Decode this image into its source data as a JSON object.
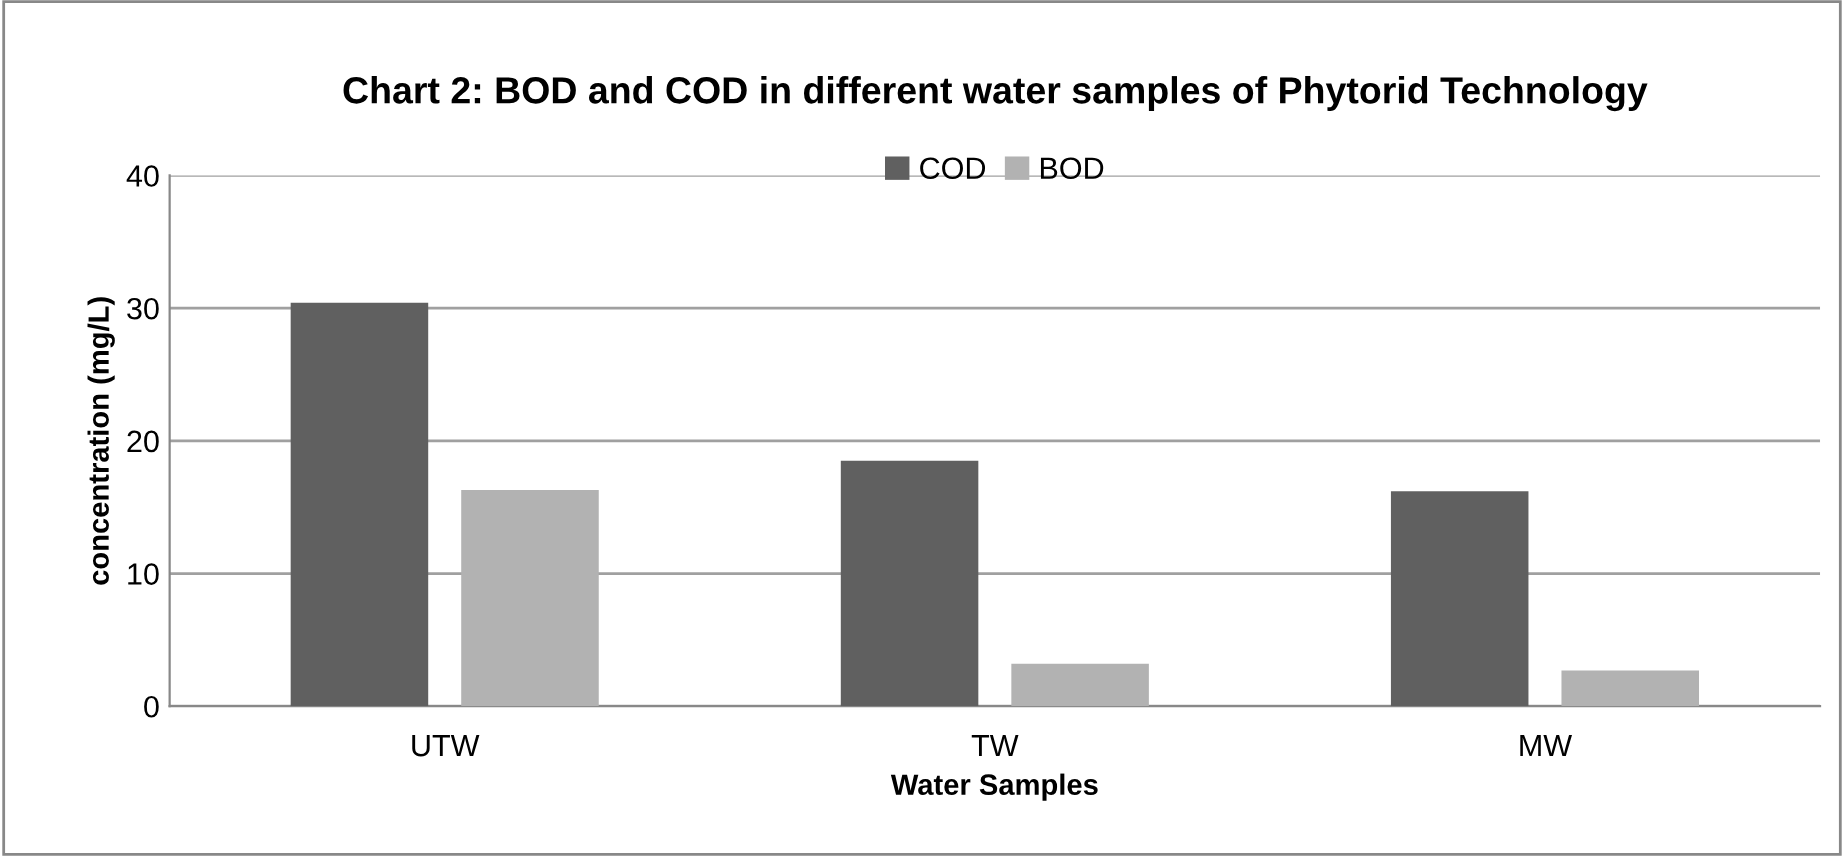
{
  "chart_data": {
    "type": "bar",
    "title": "Chart 2: BOD and COD in different water samples of Phytorid Technology",
    "xlabel": "Water Samples",
    "ylabel": "concentration (mg/L)",
    "categories": [
      "UTW",
      "TW",
      "MW"
    ],
    "series": [
      {
        "name": "COD",
        "color": "#606060",
        "values": [
          30.4,
          18.5,
          16.2
        ]
      },
      {
        "name": "BOD",
        "color": "#b2b2b2",
        "values": [
          16.3,
          3.2,
          2.7
        ]
      }
    ],
    "ylim": [
      0,
      40
    ],
    "yticks": [
      0,
      10,
      20,
      30,
      40
    ],
    "grid": "y",
    "legend": "top"
  }
}
